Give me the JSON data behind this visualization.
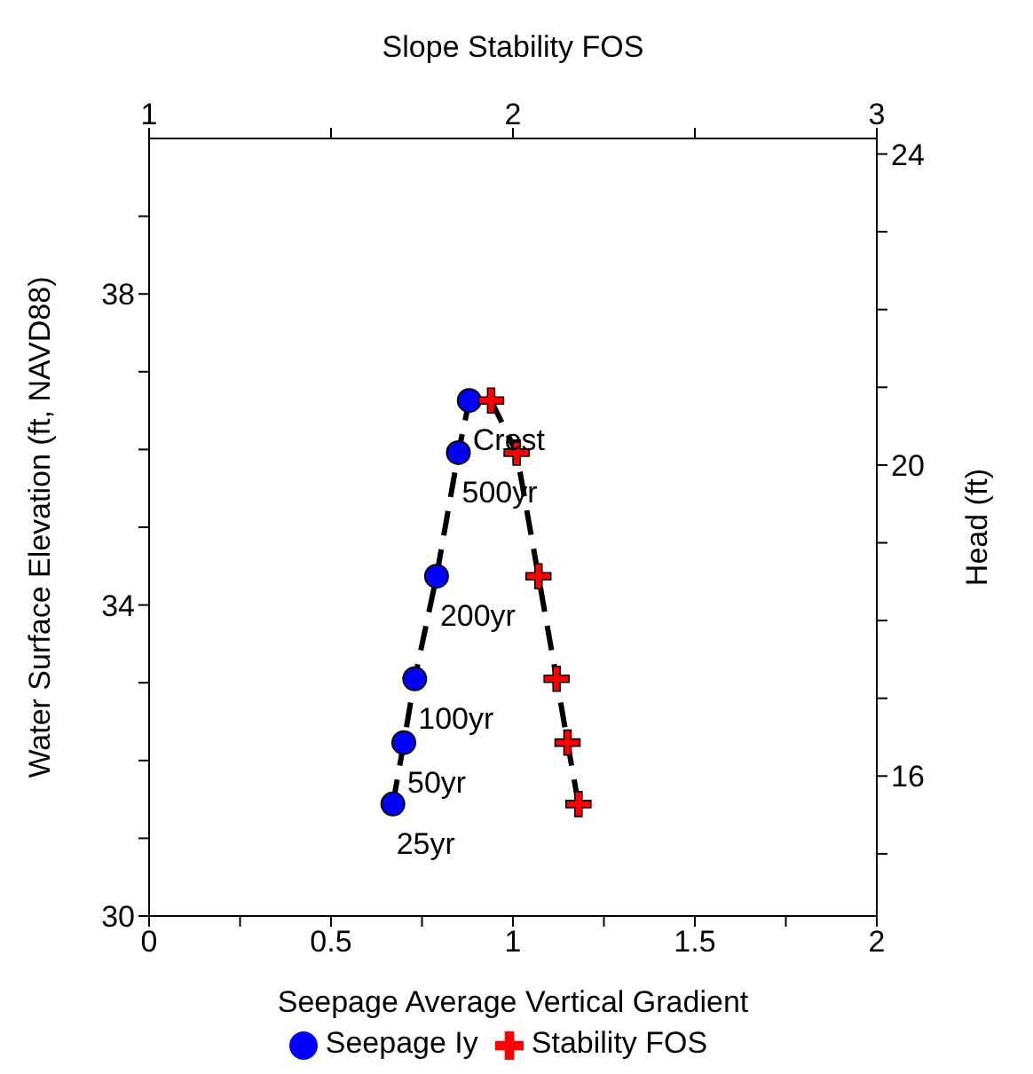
{
  "chart_data": {
    "type": "line",
    "xlabel": "Seepage Average Vertical Gradient",
    "ylabel": "Water Surface Elevation (ft, NAVD88)",
    "y2label": "Head (ft)",
    "x2label": "Slope Stability FOS",
    "xlim": [
      0,
      2
    ],
    "xticks": [
      0,
      {
        "value": 0.25,
        "label": null
      },
      0.5,
      {
        "value": 0.75,
        "label": null
      },
      1,
      {
        "value": 1.25,
        "label": null
      },
      1.5,
      {
        "value": 1.75,
        "label": null
      },
      2
    ],
    "x2lim": [
      1,
      3
    ],
    "x2ticks": [
      1,
      {
        "value": 1.5,
        "label": null
      },
      2,
      {
        "value": 2.5,
        "label": null
      },
      3
    ],
    "ylim": [
      30,
      40
    ],
    "yticks": [
      30,
      {
        "value": 31,
        "label": null
      },
      {
        "value": 32,
        "label": null
      },
      {
        "value": 33,
        "label": null
      },
      34,
      {
        "value": 35,
        "label": null
      },
      {
        "value": 36,
        "label": null
      },
      {
        "value": 37,
        "label": null
      },
      38,
      {
        "value": 39,
        "label": null
      }
    ],
    "y2lim": [
      14.2,
      24.2
    ],
    "y2ticks": [
      {
        "value": 15,
        "label": null
      },
      16,
      {
        "value": 17,
        "label": null
      },
      {
        "value": 18,
        "label": null
      },
      {
        "value": 19,
        "label": null
      },
      20,
      {
        "value": 21,
        "label": null
      },
      {
        "value": 22,
        "label": null
      },
      {
        "value": 23,
        "label": null
      },
      24
    ],
    "grid": false,
    "legend": "bottom",
    "line_style": "dashed",
    "series": [
      {
        "name": "Seepage Iy",
        "color": "#0000ff",
        "marker": "circle",
        "x": [
          0.67,
          0.7,
          0.73,
          0.79,
          0.85,
          0.88
        ],
        "values": [
          31.44,
          32.23,
          33.05,
          34.37,
          35.96,
          36.63
        ]
      },
      {
        "name": "Stability FOS",
        "color": "#ff0000",
        "marker": "cross",
        "axis": "x2",
        "x": [
          2.18,
          2.15,
          2.12,
          2.07,
          2.01,
          1.94
        ],
        "values": [
          31.44,
          32.23,
          33.05,
          34.37,
          35.96,
          36.63
        ]
      }
    ],
    "annotations": [
      {
        "text": "25yr",
        "x": 0.67,
        "y": 31.44
      },
      {
        "text": "50yr",
        "x": 0.7,
        "y": 32.23
      },
      {
        "text": "100yr",
        "x": 0.73,
        "y": 33.05
      },
      {
        "text": "200yr",
        "x": 0.79,
        "y": 34.37
      },
      {
        "text": "500yr",
        "x": 0.85,
        "y": 35.96
      },
      {
        "text": "Crest",
        "x": 0.88,
        "y": 36.63
      }
    ]
  }
}
